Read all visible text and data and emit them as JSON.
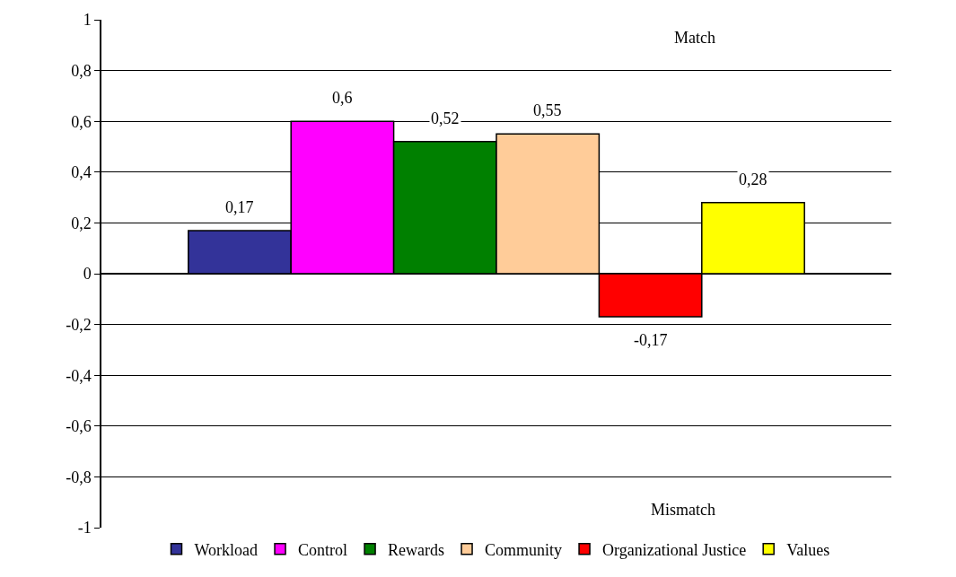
{
  "chart_data": {
    "type": "bar",
    "categories": [
      null
    ],
    "series": [
      {
        "name": "Workload",
        "color": "#333399",
        "values": [
          0.17
        ],
        "value_labels": [
          "0,17"
        ]
      },
      {
        "name": "Control",
        "color": "#ff00ff",
        "values": [
          0.6
        ],
        "value_labels": [
          "0,6"
        ]
      },
      {
        "name": "Rewards",
        "color": "#008000",
        "values": [
          0.52
        ],
        "value_labels": [
          "0,52"
        ]
      },
      {
        "name": "Community",
        "color": "#ffcc99",
        "values": [
          0.55
        ],
        "value_labels": [
          "0,55"
        ]
      },
      {
        "name": "Organizational Justice",
        "color": "#ff0000",
        "values": [
          -0.17
        ],
        "value_labels": [
          "-0,17"
        ]
      },
      {
        "name": "Values",
        "color": "#ffff00",
        "values": [
          0.28
        ],
        "value_labels": [
          "0,28"
        ]
      }
    ],
    "ylim": [
      -1,
      1
    ],
    "yticks": [
      {
        "value": -1,
        "label": "-1"
      },
      {
        "value": -0.8,
        "label": "-0,8"
      },
      {
        "value": -0.6,
        "label": "-0,6"
      },
      {
        "value": -0.4,
        "label": "-0,4"
      },
      {
        "value": -0.2,
        "label": "-0,2"
      },
      {
        "value": 0,
        "label": "0"
      },
      {
        "value": 0.2,
        "label": "0,2"
      },
      {
        "value": 0.4,
        "label": "0,4"
      },
      {
        "value": 0.6,
        "label": "0,6"
      },
      {
        "value": 0.8,
        "label": "0,8"
      },
      {
        "value": 1,
        "label": "1"
      }
    ],
    "annotations": [
      "Match",
      "Mismatch"
    ],
    "grid": "y",
    "legend": "bottom"
  }
}
